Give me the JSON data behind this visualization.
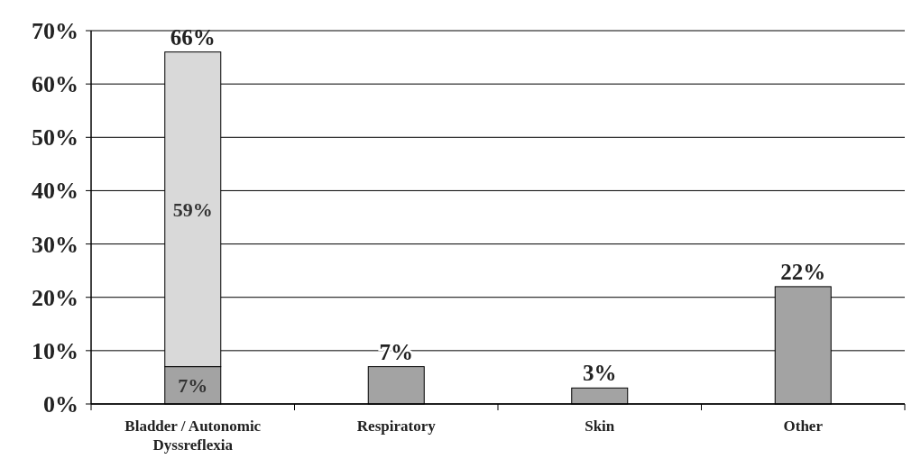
{
  "chart_data": {
    "type": "bar",
    "stacked": true,
    "categories": [
      "Bladder / Autonomic Dyssreflexia",
      "Respiratory",
      "Skin",
      "Other"
    ],
    "series": [
      {
        "color": "#a3a3a3",
        "values": [
          7,
          7,
          3,
          22
        ],
        "value_labels": [
          "7%",
          "7%",
          "3%",
          "22%"
        ]
      },
      {
        "color": "#d9d9d9",
        "values": [
          59,
          null,
          null,
          null
        ],
        "value_labels": [
          "59%",
          null,
          null,
          null
        ]
      }
    ],
    "totals": [
      "66%",
      null,
      null,
      null
    ],
    "ylim": [
      0,
      70
    ],
    "yticks": [
      {
        "value": 0,
        "label": "0%"
      },
      {
        "value": 10,
        "label": "10%"
      },
      {
        "value": 20,
        "label": "20%"
      },
      {
        "value": 30,
        "label": "30%"
      },
      {
        "value": 40,
        "label": "40%"
      },
      {
        "value": 50,
        "label": "50%"
      },
      {
        "value": 60,
        "label": "60%"
      },
      {
        "value": 70,
        "label": "70%"
      }
    ],
    "grid": "y"
  }
}
